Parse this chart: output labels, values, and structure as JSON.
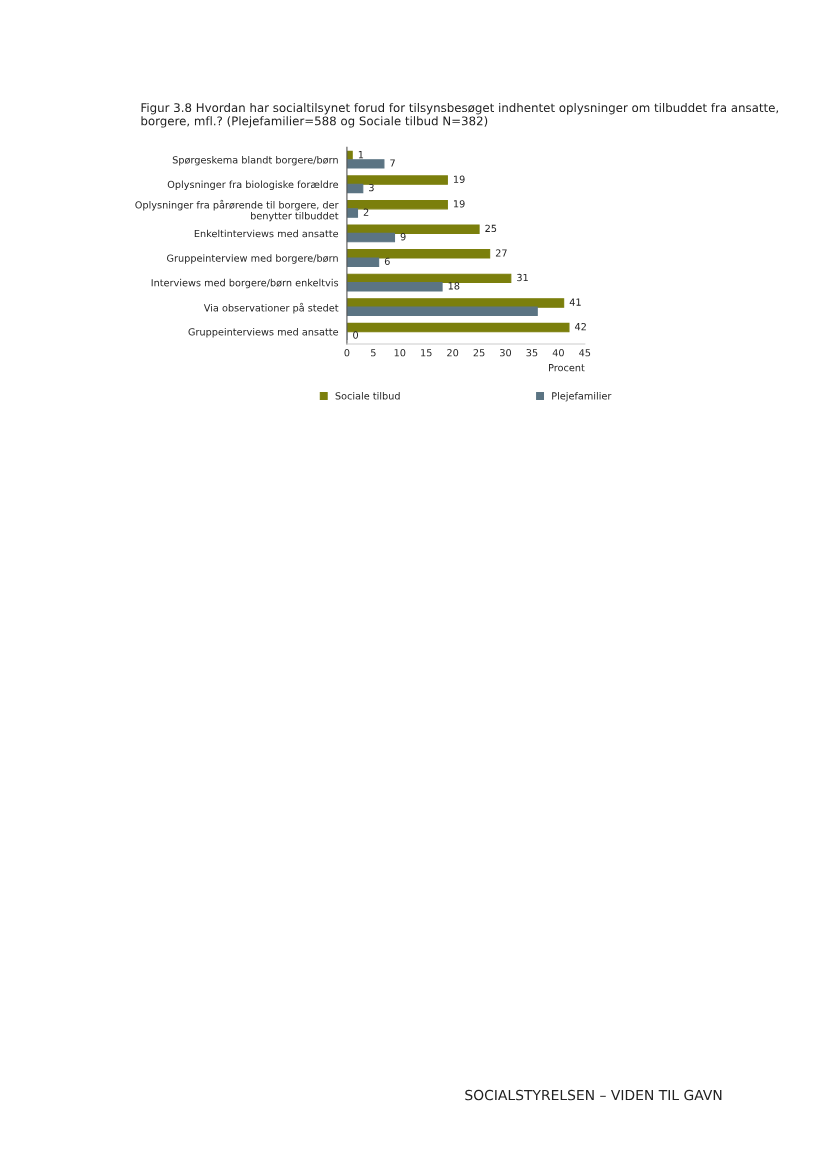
{
  "chart_data": {
    "type": "bar",
    "orientation": "horizontal",
    "title": "Figur 3.8 Hvordan har socialtilsynet forud for tilsynsbesøget indhentet oplysninger om tilbuddet fra ansatte, borgere, mfl.? (Plejefamilier=588 og Sociale tilbud N=382)",
    "categories": [
      "Spørgeskema blandt borgere/børn",
      "Oplysninger fra biologiske forældre",
      "Oplysninger fra pårørende til borgere, der\nbenytter tilbuddet",
      "Enkeltinterviews med ansatte",
      "Gruppeinterview med borgere/børn",
      "Interviews med borgere/børn enkeltvis",
      "Via observationer på stedet",
      "Gruppeinterviews med ansatte"
    ],
    "series": [
      {
        "name": "Sociale tilbud",
        "color": "#7b7f0c",
        "values": [
          1,
          19,
          19,
          25,
          27,
          31,
          41,
          42
        ],
        "value_labels": [
          "1",
          "19",
          "19",
          "25",
          "27",
          "31",
          "41",
          "42"
        ]
      },
      {
        "name": "Plejefamilier",
        "color": "#5b7483",
        "values": [
          7,
          3,
          2,
          9,
          6,
          18,
          36,
          0
        ],
        "value_labels": [
          "7",
          "3",
          "2",
          "9",
          "6",
          "18",
          null,
          "0"
        ]
      }
    ],
    "xlabel": "Procent",
    "xlim": [
      0,
      45
    ],
    "xticks": [
      0,
      5,
      10,
      15,
      20,
      25,
      30,
      35,
      40,
      45
    ],
    "grid": false,
    "legend": "bottom",
    "annotations": [
      "SOCIALSTYRELSEN – VIDEN TIL GAVN"
    ]
  }
}
